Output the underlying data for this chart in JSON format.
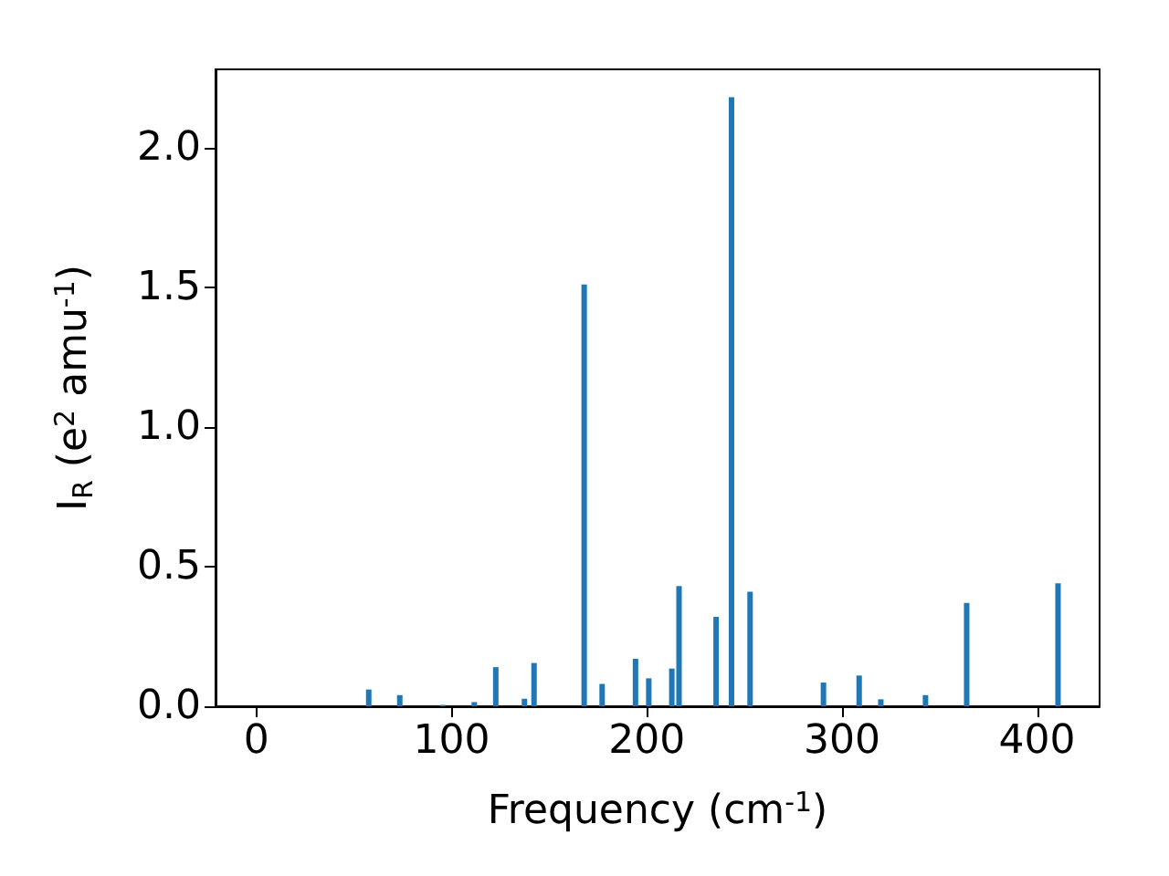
{
  "chart_data": {
    "type": "bar",
    "xlabel": "Frequency (cm$^{-1}$)",
    "ylabel": "I$_{R}$ (e$^{2}$ amu$^{-1}$)",
    "x": [
      57.5,
      73.4,
      95.4,
      111.6,
      122.6,
      137.3,
      142.2,
      167.9,
      177.1,
      194.2,
      201,
      212.8,
      216.5,
      235.5,
      243.4,
      252.9,
      290.5,
      308.8,
      319.9,
      342.8,
      363.9,
      410.7
    ],
    "values": [
      0.06,
      0.04,
      0.005,
      0.015,
      0.14,
      0.027,
      0.155,
      1.51,
      0.08,
      0.17,
      0.1,
      0.135,
      0.43,
      0.32,
      2.18,
      0.41,
      0.085,
      0.11,
      0.025,
      0.04,
      0.37,
      0.44
    ],
    "color": "#1f77b4",
    "xlim": [
      -21,
      432
    ],
    "xticks": [
      0,
      100,
      200,
      300,
      400
    ],
    "ylim": [
      0,
      2.28
    ],
    "yticks": [
      {
        "value": 0,
        "label": "0.0"
      },
      {
        "value": 0.5,
        "label": "0.5"
      },
      {
        "value": 1,
        "label": "1.0"
      },
      {
        "value": 1.5,
        "label": "1.5"
      },
      {
        "value": 2,
        "label": "2.0"
      }
    ],
    "grid": false
  }
}
